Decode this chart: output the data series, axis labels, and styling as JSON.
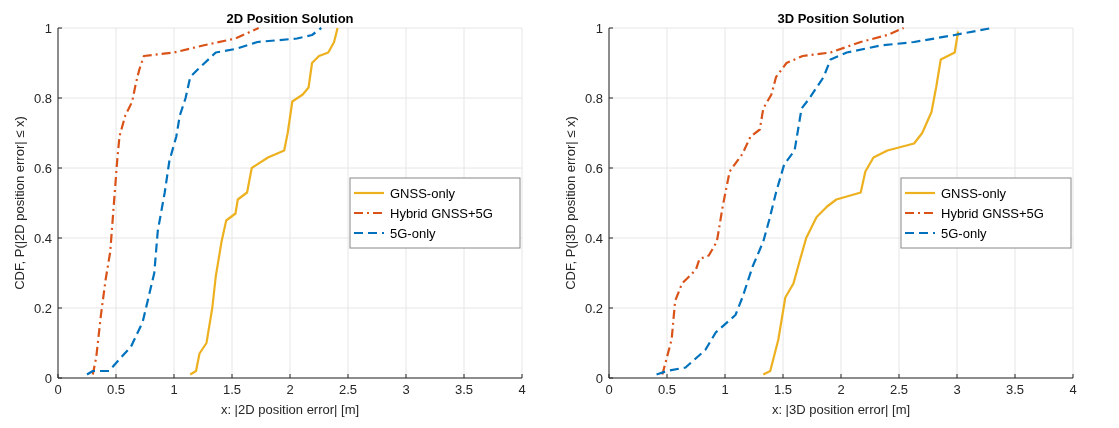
{
  "chart_data": [
    {
      "type": "line",
      "title": "2D Position Solution",
      "xlabel": "x: |2D position error| [m]",
      "ylabel": "CDF, P(|2D position error| ≤ x)",
      "xlim": [
        0,
        4
      ],
      "xticks": [
        0,
        0.5,
        1,
        1.5,
        2,
        2.5,
        3,
        3.5,
        4
      ],
      "ylim": [
        0,
        1
      ],
      "yticks": [
        0,
        0.2,
        0.4,
        0.6,
        0.8,
        1
      ],
      "grid": true,
      "legend": "right",
      "series": [
        {
          "name": "GNSS-only",
          "color": "#edb120",
          "line_style": "solid",
          "x": [
            1.14,
            1.19,
            1.22,
            1.28,
            1.33,
            1.36,
            1.41,
            1.45,
            1.53,
            1.55,
            1.63,
            1.67,
            1.81,
            1.95,
            1.98,
            2.02,
            2.11,
            2.16,
            2.19,
            2.25,
            2.33,
            2.38,
            2.41
          ],
          "values": [
            0.01,
            0.02,
            0.07,
            0.1,
            0.2,
            0.29,
            0.39,
            0.45,
            0.47,
            0.51,
            0.53,
            0.6,
            0.63,
            0.65,
            0.7,
            0.79,
            0.81,
            0.83,
            0.9,
            0.92,
            0.93,
            0.96,
            1
          ]
        },
        {
          "name": "Hybrid GNSS+5G",
          "color": "#d95319",
          "line_style": "dashdot",
          "x": [
            0.3,
            0.33,
            0.37,
            0.41,
            0.45,
            0.51,
            0.53,
            0.58,
            0.64,
            0.67,
            0.7,
            0.74,
            1,
            1.25,
            1.53,
            1.73
          ],
          "values": [
            0.01,
            0.06,
            0.18,
            0.28,
            0.36,
            0.62,
            0.69,
            0.75,
            0.79,
            0.84,
            0.88,
            0.92,
            0.93,
            0.95,
            0.97,
            1
          ]
        },
        {
          "name": "5G-only",
          "color": "#0072bd",
          "line_style": "dashed",
          "x": [
            0.25,
            0.3,
            0.44,
            0.52,
            0.63,
            0.73,
            0.83,
            0.86,
            0.92,
            0.96,
            1.02,
            1.05,
            1.1,
            1.14,
            1.2,
            1.36,
            1.53,
            1.72,
            2.06,
            2.19,
            2.27
          ],
          "values": [
            0.01,
            0.02,
            0.02,
            0.05,
            0.09,
            0.16,
            0.3,
            0.42,
            0.53,
            0.62,
            0.69,
            0.75,
            0.8,
            0.86,
            0.88,
            0.93,
            0.94,
            0.96,
            0.97,
            0.98,
            1
          ]
        }
      ]
    },
    {
      "type": "line",
      "title": "3D Position Solution",
      "xlabel": "x: |3D position error| [m]",
      "ylabel": "CDF, P(|3D position error| ≤ x)",
      "xlim": [
        0,
        4
      ],
      "xticks": [
        0,
        0.5,
        1,
        1.5,
        2,
        2.5,
        3,
        3.5,
        4
      ],
      "ylim": [
        0,
        1
      ],
      "yticks": [
        0,
        0.2,
        0.4,
        0.6,
        0.8,
        1
      ],
      "grid": true,
      "legend": "right",
      "series": [
        {
          "name": "GNSS-only",
          "color": "#edb120",
          "line_style": "solid",
          "x": [
            1.33,
            1.39,
            1.46,
            1.52,
            1.59,
            1.64,
            1.7,
            1.79,
            1.88,
            1.96,
            2.17,
            2.21,
            2.28,
            2.4,
            2.63,
            2.7,
            2.78,
            2.82,
            2.86,
            2.98,
            3.01
          ],
          "values": [
            0.01,
            0.02,
            0.11,
            0.23,
            0.27,
            0.33,
            0.4,
            0.46,
            0.49,
            0.51,
            0.53,
            0.59,
            0.63,
            0.65,
            0.67,
            0.7,
            0.76,
            0.83,
            0.91,
            0.93,
            0.99
          ]
        },
        {
          "name": "Hybrid GNSS+5G",
          "color": "#d95319",
          "line_style": "dashdot",
          "x": [
            0.46,
            0.5,
            0.54,
            0.57,
            0.63,
            0.75,
            0.78,
            0.86,
            0.93,
            0.98,
            1.04,
            1.15,
            1.22,
            1.3,
            1.33,
            1.4,
            1.44,
            1.53,
            1.67,
            1.91,
            2.17,
            2.4,
            2.54
          ],
          "values": [
            0.01,
            0.06,
            0.11,
            0.22,
            0.27,
            0.31,
            0.34,
            0.35,
            0.39,
            0.49,
            0.59,
            0.64,
            0.69,
            0.71,
            0.77,
            0.81,
            0.86,
            0.9,
            0.92,
            0.93,
            0.96,
            0.98,
            1
          ]
        },
        {
          "name": "5G-only",
          "color": "#0072bd",
          "line_style": "dashed",
          "x": [
            0.41,
            0.5,
            0.66,
            0.83,
            0.92,
            1.09,
            1.15,
            1.24,
            1.33,
            1.38,
            1.44,
            1.51,
            1.6,
            1.66,
            1.73,
            1.85,
            1.91,
            2.05,
            2.34,
            2.63,
            2.98,
            3.3
          ],
          "values": [
            0.01,
            0.02,
            0.03,
            0.08,
            0.13,
            0.18,
            0.23,
            0.32,
            0.39,
            0.45,
            0.53,
            0.61,
            0.65,
            0.77,
            0.8,
            0.86,
            0.91,
            0.93,
            0.95,
            0.96,
            0.98,
            1
          ]
        }
      ]
    }
  ]
}
